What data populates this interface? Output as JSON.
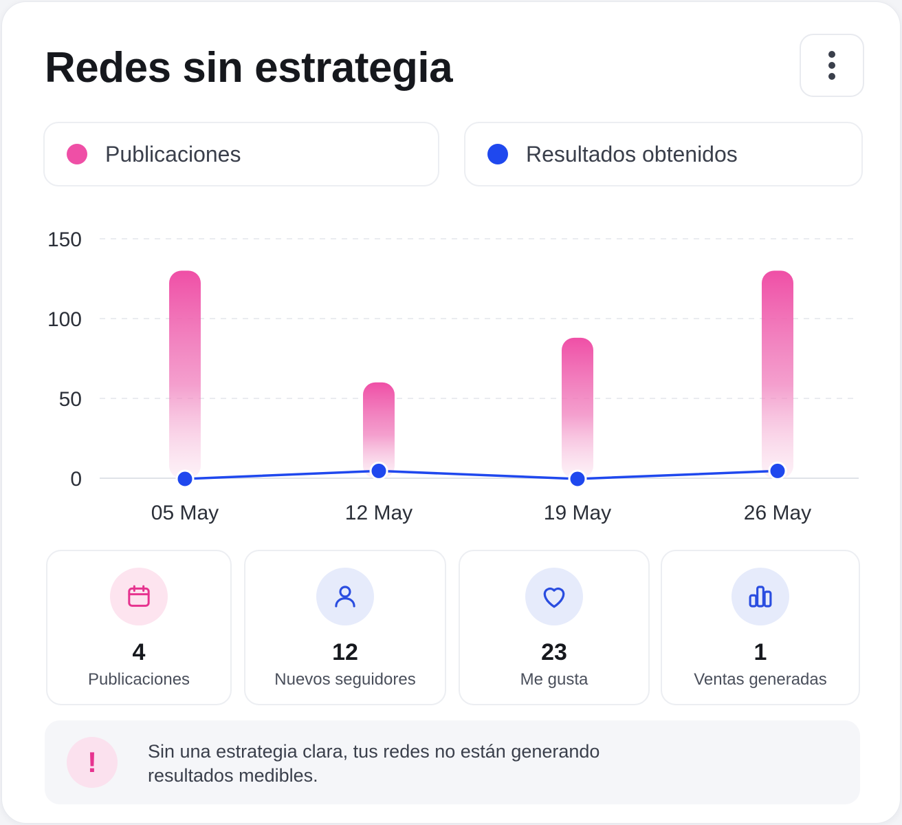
{
  "header": {
    "title": "Redes sin estrategia"
  },
  "legend": {
    "publications": {
      "label": "Publicaciones",
      "color": "#ef4fa6"
    },
    "results": {
      "label": "Resultados obtenidos",
      "color": "#1f48ee"
    }
  },
  "chart_data": {
    "type": "bar",
    "categories": [
      "05 May",
      "12 May",
      "19 May",
      "26 May"
    ],
    "series": [
      {
        "name": "Publicaciones",
        "type": "bar",
        "values": [
          130,
          60,
          88,
          130
        ],
        "color": "#ef4fa6"
      },
      {
        "name": "Resultados obtenidos",
        "type": "line",
        "values": [
          0,
          5,
          0,
          5
        ],
        "color": "#1f48ee"
      }
    ],
    "yticks": [
      0,
      50,
      100,
      150
    ],
    "ylim": [
      0,
      150
    ],
    "grid": true,
    "legend_position": "top"
  },
  "stats": [
    {
      "value": "4",
      "label": "Publicaciones",
      "icon": "calendar-icon",
      "bg": "#fde4ef",
      "fg": "#e6338f"
    },
    {
      "value": "12",
      "label": "Nuevos seguidores",
      "icon": "user-icon",
      "bg": "#e6ebfb",
      "fg": "#2a4de0"
    },
    {
      "value": "23",
      "label": "Me gusta",
      "icon": "heart-icon",
      "bg": "#e6ebfb",
      "fg": "#2a4de0"
    },
    {
      "value": "1",
      "label": "Ventas generadas",
      "icon": "bar-chart-icon",
      "bg": "#e6ebfb",
      "fg": "#2a4de0"
    }
  ],
  "alert": {
    "icon": "exclamation-icon",
    "symbol": "!",
    "message": "Sin una estrategia clara, tus redes no están generando resultados medibles."
  }
}
